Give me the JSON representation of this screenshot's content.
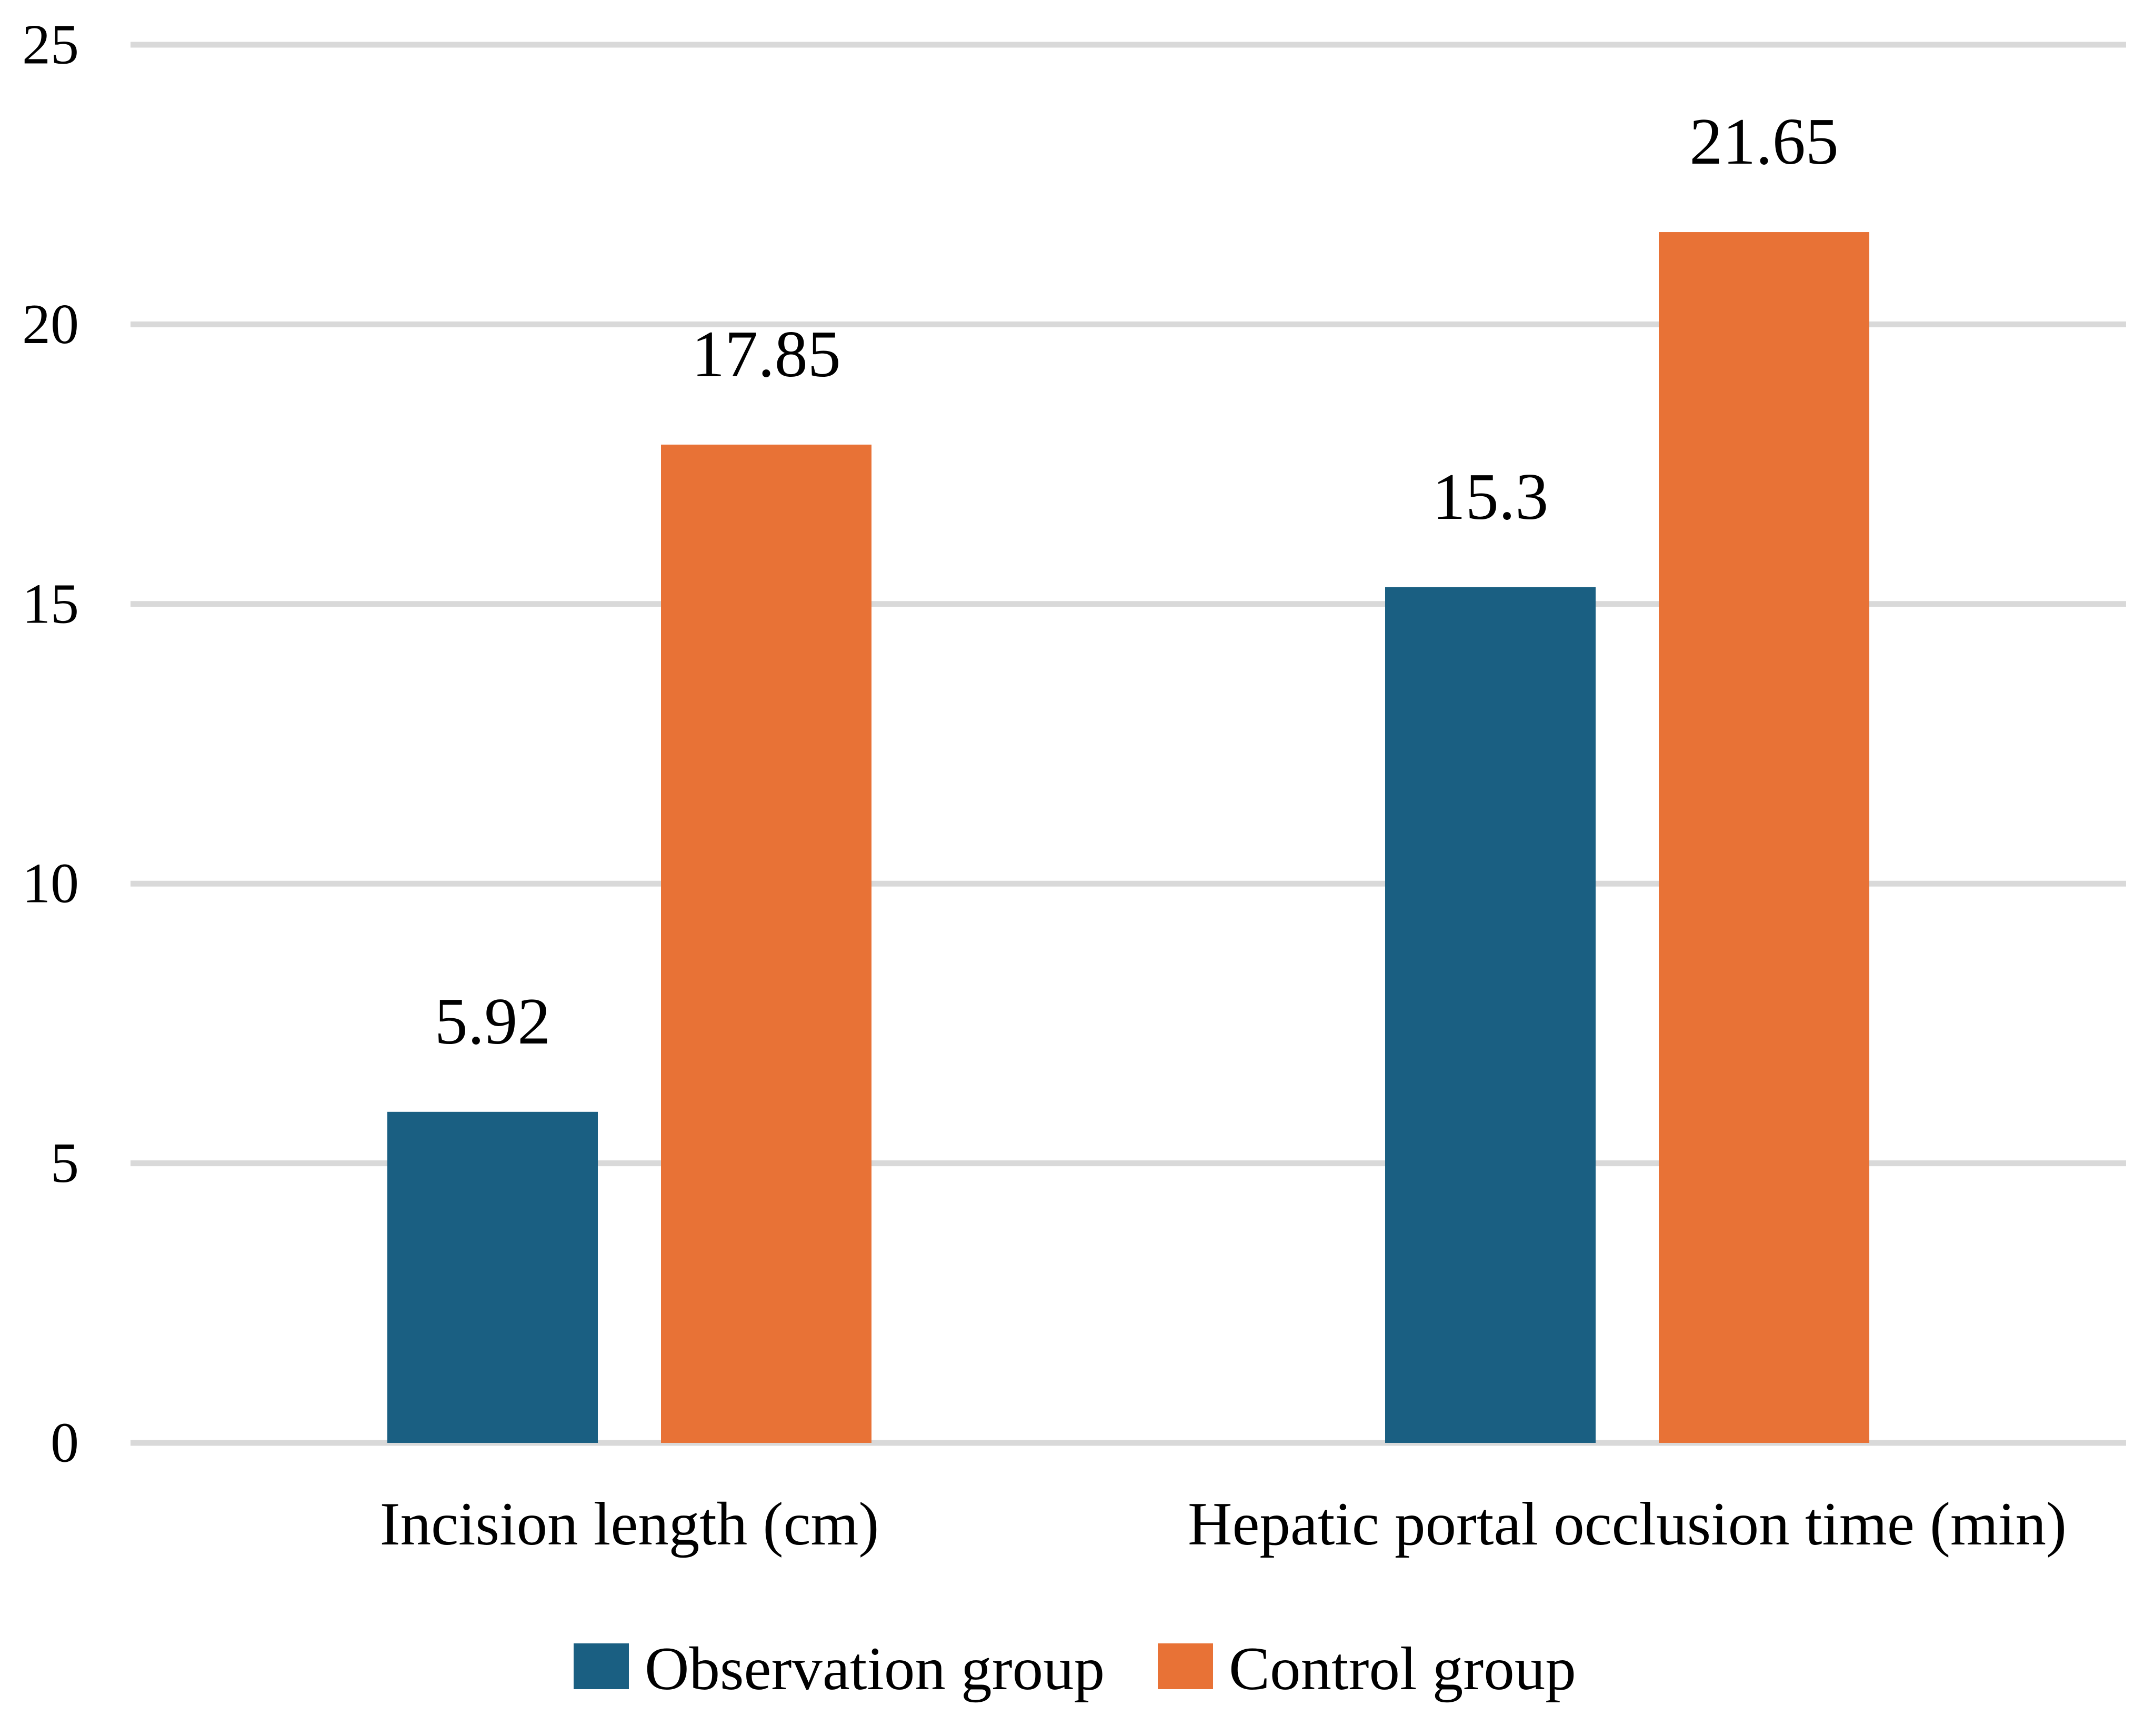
{
  "chart_data": {
    "type": "bar",
    "categories": [
      "Incision length (cm)",
      "Hepatic portal occlusion time (min)"
    ],
    "series": [
      {
        "name": "Observation group",
        "color": "#1a5f82",
        "values": [
          5.92,
          15.3
        ],
        "labels": [
          "5.92",
          "15.3"
        ]
      },
      {
        "name": "Control group",
        "color": "#e87236",
        "values": [
          17.85,
          21.65
        ],
        "labels": [
          "17.85",
          "21.65"
        ]
      }
    ],
    "ylim": [
      0,
      25
    ],
    "yticks": [
      0,
      5,
      10,
      15,
      20,
      25
    ],
    "grid": true,
    "legend": "bottom",
    "title": "",
    "xlabel": "",
    "ylabel": ""
  }
}
